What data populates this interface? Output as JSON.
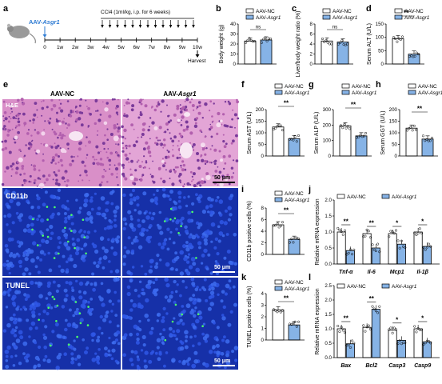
{
  "colors": {
    "nc": "#ffffff",
    "asgr1": "#86b3e6",
    "he_pink": "#d98fc8",
    "if_blue": "#1630a8",
    "dot_green": "#4cff6a",
    "accent_blue": "#2e7bd3"
  },
  "panel_labels": {
    "a": "a",
    "b": "b",
    "c": "c",
    "d": "d",
    "e": "e",
    "f": "f",
    "g": "g",
    "h": "h",
    "i": "i",
    "j": "j",
    "k": "k",
    "l": "l"
  },
  "legend": {
    "nc": "AAV-NC",
    "asgr1_prefix": "AAV-",
    "asgr1_gene": "Asgr1"
  },
  "schematic": {
    "virus_prefix": "AAV-",
    "virus_gene": "Asgr1",
    "treatment": "CCl4 (1ml/kg, i.p. for 6 weeks)",
    "weeks": [
      "0",
      "1w",
      "2w",
      "3w",
      "4w",
      "5w",
      "6w",
      "7w",
      "8w",
      "9w",
      "10w"
    ],
    "harvest": "Harvest"
  },
  "micro": {
    "col_nc": "AAV-NC",
    "col_asgr1_prefix": "AAV-",
    "col_asgr1_gene": "Asgr1",
    "row_he": "H&E",
    "row_cd11b": "CD11b",
    "row_tunel": "TUNEL",
    "scale": "50 μm"
  },
  "chart_data": [
    {
      "panel": "b",
      "type": "bar",
      "categories": [
        "AAV-NC",
        "AAV-Asgr1"
      ],
      "values": [
        23,
        24
      ],
      "ylabel": "Body weight (g)",
      "ylim": [
        0,
        40
      ],
      "yticks": [
        0,
        10,
        20,
        30,
        40
      ],
      "significance": "ns"
    },
    {
      "panel": "c",
      "type": "bar",
      "categories": [
        "AAV-NC",
        "AAV-Asgr1"
      ],
      "values": [
        4.6,
        4.4
      ],
      "ylabel": "Liver/body weight ratio (%)",
      "ylim": [
        0,
        8
      ],
      "yticks": [
        0,
        2,
        4,
        6,
        8
      ],
      "significance": "ns"
    },
    {
      "panel": "d",
      "type": "bar",
      "categories": [
        "AAV-NC",
        "AAV-Asgr1"
      ],
      "values": [
        95,
        37
      ],
      "ylabel": "Serum ALT (U/L)",
      "ylim": [
        0,
        150
      ],
      "yticks": [
        0,
        50,
        100,
        150
      ],
      "significance": "**"
    },
    {
      "panel": "f",
      "type": "bar",
      "categories": [
        "AAV-NC",
        "AAV-Asgr1"
      ],
      "values": [
        125,
        75
      ],
      "ylabel": "Serum AST (U/L)",
      "ylim": [
        0,
        200
      ],
      "yticks": [
        0,
        50,
        100,
        150,
        200
      ],
      "significance": "**"
    },
    {
      "panel": "g",
      "type": "bar",
      "categories": [
        "AAV-NC",
        "AAV-Asgr1"
      ],
      "values": [
        195,
        130
      ],
      "ylabel": "Serum ALP (U/L)",
      "ylim": [
        0,
        300
      ],
      "yticks": [
        0,
        100,
        200,
        300
      ],
      "significance": "**"
    },
    {
      "panel": "h",
      "type": "bar",
      "categories": [
        "AAV-NC",
        "AAV-Asgr1"
      ],
      "values": [
        120,
        73
      ],
      "ylabel": "Serum GGT (U/L)",
      "ylim": [
        0,
        200
      ],
      "yticks": [
        0,
        50,
        100,
        150,
        200
      ],
      "significance": "**"
    },
    {
      "panel": "i",
      "type": "bar",
      "categories": [
        "AAV-NC",
        "AAV-Asgr1"
      ],
      "values": [
        5.1,
        2.6
      ],
      "ylabel": "CD11b positive cells (%)",
      "ylim": [
        0,
        8
      ],
      "yticks": [
        0,
        2,
        4,
        6,
        8
      ],
      "significance": "**"
    },
    {
      "panel": "k",
      "type": "bar",
      "categories": [
        "AAV-NC",
        "AAV-Asgr1"
      ],
      "values": [
        2.6,
        1.3
      ],
      "ylabel": "TUNEL positive cells (%)",
      "ylim": [
        0,
        4
      ],
      "yticks": [
        0,
        1,
        2,
        3,
        4
      ],
      "significance": "**"
    },
    {
      "panel": "j",
      "type": "bar",
      "categories": [
        "Tnf-α",
        "Il-6",
        "Mcp1",
        "Il-1β"
      ],
      "series": [
        {
          "name": "AAV-NC",
          "values": [
            1.0,
            0.95,
            0.95,
            1.0
          ]
        },
        {
          "name": "AAV-Asgr1",
          "values": [
            0.42,
            0.5,
            0.62,
            0.55
          ]
        }
      ],
      "ylabel": "Relative mRNA expression",
      "ylim": [
        0,
        2.0
      ],
      "yticks": [
        0.0,
        0.5,
        1.0,
        1.5,
        2.0
      ],
      "significance": [
        "**",
        "**",
        "*",
        "*"
      ]
    },
    {
      "panel": "l",
      "type": "bar",
      "categories": [
        "Bax",
        "Bcl2",
        "Casp3",
        "Casp9"
      ],
      "series": [
        {
          "name": "AAV-NC",
          "values": [
            1.0,
            1.05,
            0.95,
            1.0
          ]
        },
        {
          "name": "AAV-Asgr1",
          "values": [
            0.48,
            1.68,
            0.6,
            0.55
          ]
        }
      ],
      "ylabel": "Relative mRNA expression",
      "ylim": [
        0,
        2.5
      ],
      "yticks": [
        0.0,
        0.5,
        1.0,
        1.5,
        2.0,
        2.5
      ],
      "significance": [
        "**",
        "**",
        "*",
        "*"
      ]
    }
  ]
}
